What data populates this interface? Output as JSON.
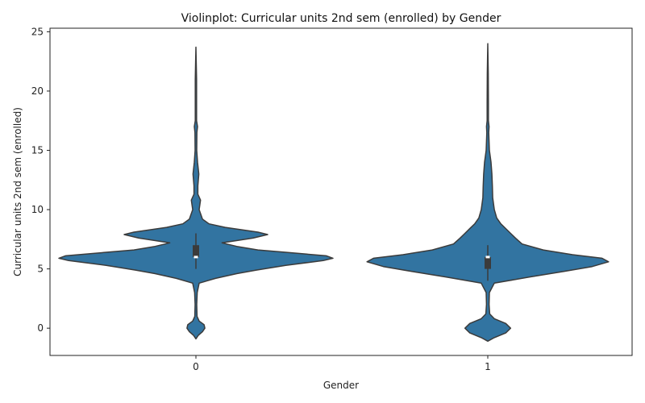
{
  "chart_data": {
    "type": "violin",
    "title": "Violinplot: Curricular units 2nd sem (enrolled) by Gender",
    "xlabel": "Gender",
    "ylabel": "Curricular units 2nd sem (enrolled)",
    "categories": [
      "0",
      "1"
    ],
    "ylim": [
      -2.3,
      25.3
    ],
    "yticks": [
      0,
      5,
      10,
      15,
      20,
      25
    ],
    "color": "#3274a1",
    "edge_color": "#3b3b3b",
    "violins": [
      {
        "category": "0",
        "ymin": -0.9,
        "ymax": 23.7,
        "profile": [
          [
            -0.9,
            0.0
          ],
          [
            -0.6,
            0.015
          ],
          [
            -0.3,
            0.04
          ],
          [
            0.0,
            0.055
          ],
          [
            0.3,
            0.05
          ],
          [
            0.6,
            0.02
          ],
          [
            1.0,
            0.007
          ],
          [
            2.0,
            0.005
          ],
          [
            3.0,
            0.008
          ],
          [
            3.8,
            0.02
          ],
          [
            4.2,
            0.12
          ],
          [
            4.6,
            0.25
          ],
          [
            4.9,
            0.37
          ],
          [
            5.3,
            0.55
          ],
          [
            5.7,
            0.78
          ],
          [
            5.9,
            0.84
          ],
          [
            6.1,
            0.8
          ],
          [
            6.4,
            0.55
          ],
          [
            6.6,
            0.38
          ],
          [
            6.9,
            0.25
          ],
          [
            7.2,
            0.16
          ],
          [
            7.6,
            0.35
          ],
          [
            7.9,
            0.44
          ],
          [
            8.1,
            0.38
          ],
          [
            8.5,
            0.18
          ],
          [
            8.8,
            0.08
          ],
          [
            9.2,
            0.04
          ],
          [
            10.0,
            0.02
          ],
          [
            10.8,
            0.028
          ],
          [
            11.3,
            0.012
          ],
          [
            12.0,
            0.012
          ],
          [
            13.0,
            0.018
          ],
          [
            14.0,
            0.01
          ],
          [
            15.0,
            0.005
          ],
          [
            16.5,
            0.006
          ],
          [
            17.0,
            0.01
          ],
          [
            17.5,
            0.004
          ],
          [
            19.0,
            0.004
          ],
          [
            21.0,
            0.004
          ],
          [
            23.7,
            0.0
          ]
        ],
        "q1": 6.0,
        "median": 6.0,
        "q3": 7.0,
        "whisker_low": 5.0,
        "whisker_high": 8.0
      },
      {
        "category": "1",
        "ymin": -1.1,
        "ymax": 24.0,
        "profile": [
          [
            -1.1,
            0.0
          ],
          [
            -0.8,
            0.04
          ],
          [
            -0.4,
            0.11
          ],
          [
            0.0,
            0.14
          ],
          [
            0.4,
            0.11
          ],
          [
            0.8,
            0.04
          ],
          [
            1.2,
            0.012
          ],
          [
            2.0,
            0.008
          ],
          [
            3.0,
            0.01
          ],
          [
            3.8,
            0.04
          ],
          [
            4.3,
            0.25
          ],
          [
            4.8,
            0.47
          ],
          [
            5.2,
            0.64
          ],
          [
            5.6,
            0.74
          ],
          [
            5.9,
            0.7
          ],
          [
            6.2,
            0.52
          ],
          [
            6.6,
            0.34
          ],
          [
            7.1,
            0.21
          ],
          [
            7.6,
            0.17
          ],
          [
            8.0,
            0.14
          ],
          [
            8.4,
            0.11
          ],
          [
            8.8,
            0.08
          ],
          [
            9.3,
            0.055
          ],
          [
            10.0,
            0.04
          ],
          [
            11.0,
            0.03
          ],
          [
            12.0,
            0.028
          ],
          [
            13.0,
            0.025
          ],
          [
            14.0,
            0.02
          ],
          [
            15.0,
            0.01
          ],
          [
            16.5,
            0.006
          ],
          [
            17.0,
            0.008
          ],
          [
            17.5,
            0.004
          ],
          [
            19.0,
            0.004
          ],
          [
            21.5,
            0.003
          ],
          [
            24.0,
            0.0
          ]
        ],
        "q1": 5.0,
        "median": 6.0,
        "q3": 6.0,
        "whisker_low": 4.0,
        "whisker_high": 7.0
      }
    ],
    "grid": false,
    "legend": "none"
  }
}
